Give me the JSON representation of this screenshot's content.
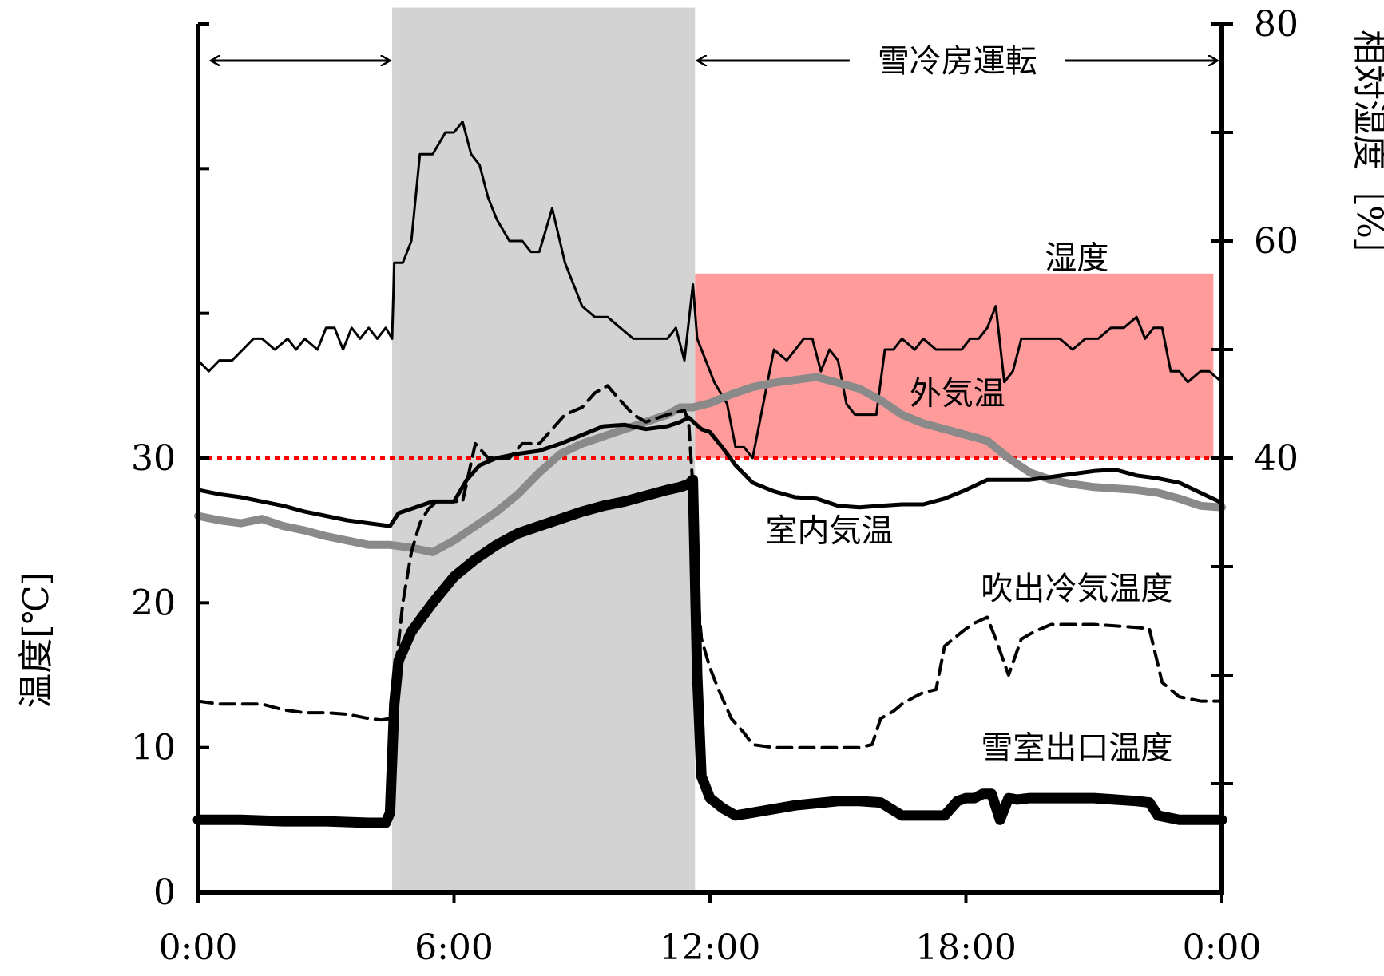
{
  "chart_data": {
    "type": "line",
    "title": "",
    "x_axis": {
      "label": "",
      "min_hours": 0,
      "max_hours": 24,
      "ticks": [
        {
          "hours": 0,
          "label": "0:00"
        },
        {
          "hours": 6,
          "label": "6:00"
        },
        {
          "hours": 12,
          "label": "12:00"
        },
        {
          "hours": 18,
          "label": "18:00"
        },
        {
          "hours": 24,
          "label": "0:00"
        }
      ]
    },
    "y_left": {
      "label": "温度[℃]",
      "min": 0,
      "max": 60,
      "tick_labels": [
        "0",
        "10",
        "20",
        "30"
      ],
      "tick_values": [
        0,
        10,
        20,
        30
      ]
    },
    "y_right": {
      "label": "相対湿度［%］",
      "min": 0,
      "max": 80,
      "tick_labels": [
        "40",
        "60",
        "80"
      ],
      "tick_values": [
        40,
        60,
        80
      ]
    },
    "reference_line": {
      "axis": "left",
      "value": 30,
      "style": "dotted",
      "color": "#ff0000"
    },
    "shaded_regions": [
      {
        "x0": 4.55,
        "x1": 11.65,
        "axis": "right",
        "y0": 0,
        "y1": 81.5,
        "color": "#d3d3d3"
      },
      {
        "x0": 11.65,
        "x1": 23.8,
        "axis": "right",
        "y0": 40,
        "y1": 57,
        "color": "#ff9b9b"
      }
    ],
    "spans": [
      {
        "x0": 0.3,
        "x1": 4.5,
        "label": ""
      },
      {
        "x0": 11.7,
        "x1": 23.9,
        "label": "雪冷房運転"
      }
    ],
    "series": [
      {
        "name": "湿度",
        "axis": "right",
        "color": "#000000",
        "width": 3,
        "style": "solid",
        "x": [
          0,
          0.25,
          0.5,
          0.8,
          1.3,
          1.5,
          1.8,
          2.1,
          2.3,
          2.5,
          2.8,
          3.0,
          3.2,
          3.4,
          3.6,
          3.8,
          4.0,
          4.2,
          4.4,
          4.55,
          4.6,
          4.8,
          5.0,
          5.2,
          5.5,
          5.8,
          6.0,
          6.2,
          6.4,
          6.6,
          6.8,
          7.0,
          7.3,
          7.6,
          7.8,
          8.0,
          8.3,
          8.6,
          8.8,
          9.0,
          9.3,
          9.6,
          9.9,
          10.2,
          10.5,
          10.8,
          11.0,
          11.2,
          11.4,
          11.6,
          11.7,
          11.9,
          12.1,
          12.4,
          12.6,
          12.8,
          13.0,
          13.2,
          13.5,
          13.8,
          14.0,
          14.2,
          14.4,
          14.6,
          14.8,
          15.0,
          15.2,
          15.4,
          15.6,
          15.9,
          16.1,
          16.3,
          16.5,
          16.8,
          17.0,
          17.3,
          17.6,
          17.9,
          18.1,
          18.3,
          18.5,
          18.7,
          18.9,
          19.1,
          19.3,
          19.6,
          19.8,
          20.2,
          20.5,
          20.8,
          21.1,
          21.4,
          21.7,
          22.0,
          22.2,
          22.4,
          22.6,
          22.8,
          23.0,
          23.2,
          23.5,
          23.7,
          24.0
        ],
        "y": [
          49,
          48,
          49,
          49,
          51,
          51,
          50,
          51,
          50,
          51,
          50,
          52,
          52,
          50,
          52,
          51,
          52,
          51,
          52,
          51,
          58,
          58,
          60,
          68,
          68,
          70,
          70,
          71,
          68,
          67,
          64,
          62,
          60,
          60,
          59,
          59,
          63,
          58,
          56,
          54,
          53,
          53,
          52,
          51,
          51,
          51,
          51,
          52,
          49,
          56,
          51,
          49,
          47,
          45,
          41,
          41,
          40,
          44,
          50,
          49,
          50,
          51,
          51,
          48,
          50,
          49,
          45,
          44,
          44,
          44,
          50,
          50,
          51,
          50,
          51,
          50,
          50,
          50,
          51,
          51,
          52,
          54,
          47,
          48,
          51,
          51,
          51,
          51,
          50,
          51,
          51,
          52,
          52,
          53,
          51,
          52,
          52,
          48,
          48,
          47,
          48,
          48,
          47
        ]
      },
      {
        "name": "外気温",
        "axis": "left",
        "color": "#8a8a8a",
        "width": 10,
        "style": "solid",
        "x": [
          0,
          0.5,
          1.0,
          1.5,
          2.0,
          2.5,
          3.0,
          3.5,
          4.0,
          4.5,
          5.0,
          5.5,
          6.0,
          6.5,
          7.0,
          7.5,
          8.0,
          8.5,
          9.0,
          9.5,
          10.0,
          10.5,
          11.0,
          11.3,
          11.6,
          12.0,
          12.5,
          13.0,
          13.5,
          14.0,
          14.5,
          15.0,
          15.5,
          16.0,
          16.5,
          17.0,
          17.5,
          18.0,
          18.5,
          19.0,
          19.5,
          20.0,
          20.5,
          21.0,
          21.5,
          22.0,
          22.5,
          23.0,
          23.5,
          24.0
        ],
        "y": [
          26.0,
          25.7,
          25.5,
          25.8,
          25.3,
          25.0,
          24.6,
          24.3,
          24.0,
          24.0,
          23.8,
          23.5,
          24.3,
          25.3,
          26.3,
          27.5,
          29.0,
          30.3,
          31.0,
          31.5,
          32.0,
          32.5,
          33.0,
          33.5,
          33.5,
          33.8,
          34.4,
          34.9,
          35.2,
          35.4,
          35.6,
          35.2,
          34.8,
          34.0,
          33.0,
          32.4,
          32.0,
          31.6,
          31.2,
          30.0,
          29.0,
          28.5,
          28.2,
          28.0,
          27.9,
          27.8,
          27.6,
          27.2,
          26.7,
          26.6
        ]
      },
      {
        "name": "室内気温",
        "axis": "left",
        "color": "#000000",
        "width": 5,
        "style": "solid",
        "x": [
          0,
          0.5,
          1.0,
          1.5,
          2.0,
          2.5,
          3.0,
          3.5,
          4.0,
          4.5,
          4.7,
          5.0,
          5.5,
          6.0,
          6.3,
          6.6,
          7.0,
          7.5,
          8.0,
          8.5,
          9.0,
          9.5,
          10.0,
          10.5,
          11.0,
          11.3,
          11.5,
          11.8,
          12.0,
          12.3,
          12.6,
          13.0,
          13.5,
          14.0,
          14.5,
          15.0,
          15.5,
          16.0,
          16.5,
          17.0,
          17.5,
          18.0,
          18.5,
          19.0,
          19.5,
          20.0,
          20.5,
          21.0,
          21.5,
          22.0,
          22.5,
          23.0,
          23.5,
          24.0
        ],
        "y": [
          27.8,
          27.5,
          27.3,
          27.0,
          26.7,
          26.3,
          26.0,
          25.7,
          25.5,
          25.3,
          26.2,
          26.5,
          27.0,
          27.0,
          28.5,
          29.5,
          30.0,
          30.3,
          30.5,
          31.0,
          31.6,
          32.2,
          32.3,
          32.0,
          32.2,
          32.5,
          32.8,
          32.0,
          31.8,
          30.7,
          29.5,
          28.3,
          27.7,
          27.3,
          27.2,
          26.7,
          26.6,
          26.7,
          26.8,
          26.8,
          27.2,
          27.8,
          28.5,
          28.5,
          28.5,
          28.7,
          28.9,
          29.1,
          29.2,
          28.8,
          28.6,
          28.3,
          27.6,
          26.9
        ]
      },
      {
        "name": "吹出冷気温度",
        "axis": "left",
        "color": "#000000",
        "width": 4,
        "style": "dashed",
        "x": [
          0,
          0.5,
          1.0,
          1.5,
          2.0,
          2.5,
          3.0,
          3.5,
          4.0,
          4.3,
          4.5,
          4.6,
          4.8,
          5.0,
          5.2,
          5.4,
          5.6,
          6.0,
          6.2,
          6.5,
          6.8,
          7.0,
          7.3,
          7.6,
          8.0,
          8.3,
          8.6,
          9.0,
          9.3,
          9.6,
          9.8,
          10.2,
          10.5,
          11.0,
          11.4,
          11.5,
          11.6,
          11.7,
          11.8,
          12.0,
          12.2,
          12.5,
          12.8,
          13.0,
          13.5,
          14.0,
          14.5,
          15.0,
          15.5,
          15.8,
          16.0,
          16.3,
          16.5,
          16.8,
          17.0,
          17.3,
          17.5,
          17.7,
          18.0,
          18.2,
          18.5,
          18.7,
          19.0,
          19.3,
          19.6,
          20.0,
          20.5,
          21.0,
          21.5,
          22.0,
          22.3,
          22.6,
          22.8,
          23.0,
          23.5,
          24.0
        ],
        "y": [
          13.2,
          13.0,
          13.0,
          13.0,
          12.6,
          12.4,
          12.4,
          12.3,
          12.0,
          11.9,
          12.0,
          14.5,
          20.0,
          23.5,
          25.5,
          26.5,
          27.0,
          27.0,
          27.0,
          31.0,
          30.0,
          30.0,
          30.0,
          31.0,
          31.0,
          32.0,
          33.0,
          33.5,
          34.5,
          35.0,
          34.3,
          33.0,
          32.5,
          33.0,
          33.3,
          32.5,
          28.0,
          21.0,
          17.5,
          15.5,
          14.0,
          12.0,
          11.0,
          10.2,
          10.0,
          10.0,
          10.0,
          10.0,
          10.0,
          10.2,
          12.0,
          12.5,
          13.0,
          13.5,
          13.8,
          14.0,
          17.0,
          17.5,
          18.2,
          18.6,
          19.0,
          17.5,
          15.0,
          17.5,
          18.0,
          18.5,
          18.5,
          18.5,
          18.4,
          18.3,
          18.2,
          14.5,
          14.0,
          13.5,
          13.2,
          13.2
        ]
      },
      {
        "name": "雪室出口温度",
        "axis": "left",
        "color": "#000000",
        "width": 13,
        "style": "solid",
        "x": [
          0,
          1.0,
          2.0,
          3.0,
          4.0,
          4.4,
          4.5,
          4.6,
          4.7,
          5.0,
          5.5,
          6.0,
          6.5,
          7.0,
          7.5,
          8.0,
          8.5,
          9.0,
          9.5,
          10.0,
          10.5,
          11.0,
          11.3,
          11.5,
          11.6,
          11.7,
          11.8,
          12.0,
          12.3,
          12.6,
          13.0,
          14.0,
          15.0,
          15.5,
          16.0,
          16.5,
          17.0,
          17.3,
          17.5,
          17.8,
          18.0,
          18.2,
          18.4,
          18.6,
          18.8,
          19.0,
          19.2,
          19.5,
          20.0,
          21.0,
          22.0,
          22.3,
          22.5,
          23.0,
          24.0
        ],
        "y": [
          5.0,
          5.0,
          4.9,
          4.9,
          4.8,
          4.8,
          5.5,
          13.0,
          16.0,
          18.0,
          20.0,
          21.8,
          23.0,
          24.0,
          24.8,
          25.3,
          25.8,
          26.3,
          26.7,
          27.0,
          27.4,
          27.8,
          28.0,
          28.2,
          28.5,
          15.0,
          8.0,
          6.5,
          5.8,
          5.3,
          5.5,
          6.0,
          6.3,
          6.3,
          6.2,
          5.3,
          5.3,
          5.3,
          5.3,
          6.3,
          6.5,
          6.5,
          6.8,
          6.8,
          5.0,
          6.5,
          6.4,
          6.5,
          6.5,
          6.5,
          6.3,
          6.2,
          5.3,
          5.0,
          5.0
        ]
      }
    ],
    "annotations": [
      {
        "text": "湿度",
        "x": 20.6,
        "axis": "right",
        "y": 58.5
      },
      {
        "text": "外気温",
        "x": 17.8,
        "axis": "left",
        "y": 34.5
      },
      {
        "text": "室内気温",
        "x": 14.8,
        "axis": "left",
        "y": 25.0
      },
      {
        "text": "吹出冷気温度",
        "x": 20.6,
        "axis": "left",
        "y": 21.0
      },
      {
        "text": "雪室出口温度",
        "x": 20.6,
        "axis": "left",
        "y": 10.0
      }
    ]
  }
}
